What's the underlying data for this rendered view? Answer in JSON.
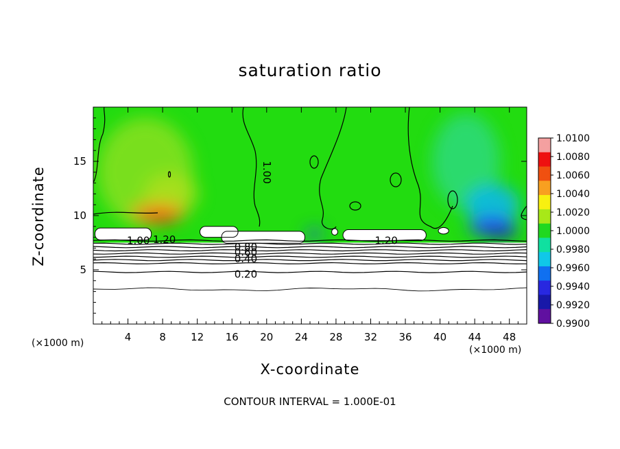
{
  "chart_data": {
    "type": "heatmap",
    "title": "saturation ratio",
    "xlabel": "X-coordinate",
    "ylabel": "Z-coordinate",
    "x_unit_label": "(×1000 m)",
    "footer": "CONTOUR INTERVAL = 1.000E-01",
    "xlim": [
      0,
      50
    ],
    "ylim": [
      0,
      20
    ],
    "x_ticks": [
      4,
      8,
      12,
      16,
      20,
      24,
      28,
      32,
      36,
      40,
      44,
      48
    ],
    "y_ticks": [
      5,
      10,
      15
    ],
    "colorbar": {
      "labels": [
        "1.0100",
        "1.0080",
        "1.0060",
        "1.0040",
        "1.0020",
        "1.0000",
        "0.9980",
        "0.9960",
        "0.9940",
        "0.9920",
        "0.9900"
      ],
      "min": 0.99,
      "max": 1.01,
      "colors": [
        "#f4a0a0",
        "#ee1010",
        "#f05010",
        "#f8a020",
        "#f8f010",
        "#a8e818",
        "#20d820",
        "#10e0a0",
        "#10c8e8",
        "#1070f0",
        "#2828e0",
        "#1818a8",
        "#6010a0"
      ]
    },
    "contour_labels": [
      {
        "text": "1.00",
        "x": 19.6,
        "y": 14.3,
        "rotate": 90
      },
      {
        "text": "1.00",
        "x": 5.2,
        "y": 7.7
      },
      {
        "text": "1.20",
        "x": 8.2,
        "y": 7.8
      },
      {
        "text": "1.20",
        "x": 33.8,
        "y": 7.7
      },
      {
        "text": "0.80",
        "x": 17.6,
        "y": 7.1
      },
      {
        "text": "0.60",
        "x": 17.6,
        "y": 6.6
      },
      {
        "text": "0.40",
        "x": 17.6,
        "y": 6.0
      },
      {
        "text": "0.20",
        "x": 17.6,
        "y": 4.6
      }
    ],
    "contour_levels_z": [
      7.7,
      7.4,
      7.1,
      6.8,
      6.5,
      6.2,
      5.9,
      5.6,
      4.8,
      3.2
    ]
  }
}
